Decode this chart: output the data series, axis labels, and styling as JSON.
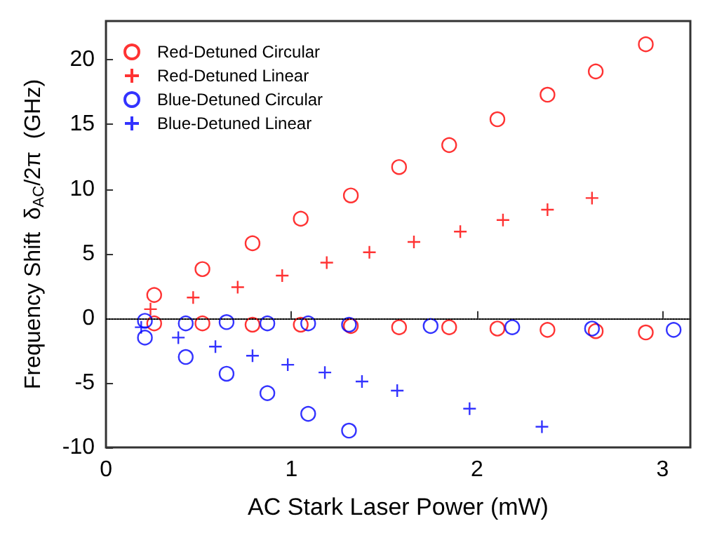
{
  "chart_data": {
    "type": "scatter",
    "xlabel": "AC Stark Laser Power (mW)",
    "ylabel": "Frequency Shift  δ$_{AC}$/2π  (GHz)",
    "xlim": [
      0,
      3.15
    ],
    "xticks": [
      0,
      1,
      2,
      3
    ],
    "ylim": [
      -10,
      23
    ],
    "yticks": [
      -10,
      -5,
      0,
      5,
      10,
      15,
      20
    ],
    "grid": false,
    "legend": "top left",
    "ref_lines": [
      {
        "axis": "y",
        "value": 0,
        "line_style": "dotted",
        "color": "#000000"
      }
    ],
    "series": [
      {
        "name": "Red-Detuned Circular",
        "color": "#ff0000",
        "marker": "circle",
        "x": [
          0.26,
          0.52,
          0.79,
          1.05,
          1.32,
          1.58,
          1.85,
          2.11,
          2.38,
          2.64,
          2.91,
          0.26,
          0.52,
          0.79,
          1.05,
          1.32,
          1.58,
          1.85,
          2.11,
          2.38,
          2.64,
          2.91
        ],
        "values": [
          1.8,
          3.8,
          5.8,
          7.7,
          9.5,
          11.7,
          13.4,
          15.4,
          17.3,
          19.1,
          21.2,
          -0.4,
          -0.4,
          -0.5,
          -0.5,
          -0.6,
          -0.7,
          -0.7,
          -0.8,
          -0.9,
          -1.0,
          -1.1
        ]
      },
      {
        "name": "Red-Detuned Linear",
        "color": "#ff0000",
        "marker": "cross",
        "x": [
          0.24,
          0.47,
          0.71,
          0.95,
          1.19,
          1.42,
          1.66,
          1.91,
          2.14,
          2.38,
          2.62
        ],
        "values": [
          0.7,
          1.6,
          2.4,
          3.3,
          4.3,
          5.1,
          5.9,
          6.7,
          7.6,
          8.4,
          9.3
        ]
      },
      {
        "name": "Blue-Detuned Circular",
        "color": "#0000ff",
        "marker": "circle",
        "x": [
          0.21,
          0.21,
          0.43,
          0.43,
          0.65,
          0.65,
          0.87,
          0.87,
          1.09,
          1.09,
          1.31,
          1.31,
          1.75,
          2.19,
          2.62,
          3.06
        ],
        "values": [
          -0.2,
          -1.5,
          -0.4,
          -3.0,
          -0.3,
          -4.3,
          -0.4,
          -5.8,
          -0.4,
          -7.4,
          -0.5,
          -8.7,
          -0.6,
          -0.7,
          -0.8,
          -0.9
        ]
      },
      {
        "name": "Blue-Detuned Linear",
        "color": "#0000ff",
        "marker": "cross",
        "x": [
          0.19,
          0.39,
          0.59,
          0.79,
          0.98,
          1.18,
          1.38,
          1.57,
          1.96,
          2.35
        ],
        "values": [
          -0.7,
          -1.5,
          -2.2,
          -2.9,
          -3.6,
          -4.2,
          -4.9,
          -5.6,
          -7.0,
          -8.4
        ]
      }
    ]
  }
}
